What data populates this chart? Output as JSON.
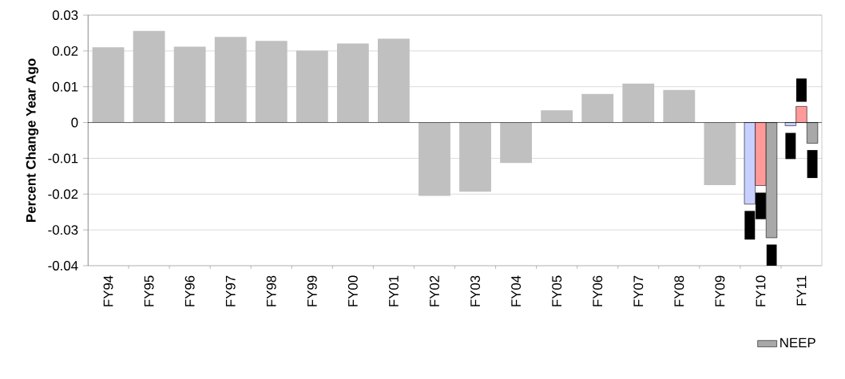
{
  "chart_data": {
    "type": "bar",
    "ylabel": "Percent Change Year Ago",
    "categories": [
      "FY94",
      "FY95",
      "FY96",
      "FY97",
      "FY98",
      "FY99",
      "FY00",
      "FY01",
      "FY02",
      "FY03",
      "FY04",
      "FY05",
      "FY06",
      "FY07",
      "FY08",
      "FY09",
      "FY10",
      "FY11"
    ],
    "series": [
      {
        "color": "#c0c0c0",
        "values": [
          0.021,
          0.0256,
          0.0212,
          0.0239,
          0.0228,
          0.0201,
          0.0221,
          0.0234,
          -0.0205,
          -0.0193,
          -0.0113,
          0.0034,
          0.008,
          0.0109,
          0.0091,
          -0.0175,
          null,
          null
        ]
      },
      {
        "color": "#c8d0ff",
        "values": [
          null,
          null,
          null,
          null,
          null,
          null,
          null,
          null,
          null,
          null,
          null,
          null,
          null,
          null,
          null,
          null,
          -0.0228,
          -0.0009
        ],
        "errors": [
          null,
          null,
          null,
          null,
          null,
          null,
          null,
          null,
          null,
          null,
          null,
          null,
          null,
          null,
          null,
          null,
          [
            -0.0327,
            -0.0247
          ],
          [
            -0.0102,
            -0.0029
          ]
        ]
      },
      {
        "color": "#ff9a9a",
        "values": [
          null,
          null,
          null,
          null,
          null,
          null,
          null,
          null,
          null,
          null,
          null,
          null,
          null,
          null,
          null,
          null,
          -0.0176,
          0.0045
        ],
        "errors": [
          null,
          null,
          null,
          null,
          null,
          null,
          null,
          null,
          null,
          null,
          null,
          null,
          null,
          null,
          null,
          null,
          [
            -0.027,
            -0.0196
          ],
          [
            0.0058,
            0.0123
          ]
        ]
      },
      {
        "name": "NEEP",
        "color": "#a8a8a8",
        "values": [
          null,
          null,
          null,
          null,
          null,
          null,
          null,
          null,
          null,
          null,
          null,
          null,
          null,
          null,
          null,
          null,
          -0.0322,
          -0.0058
        ],
        "errors": [
          null,
          null,
          null,
          null,
          null,
          null,
          null,
          null,
          null,
          null,
          null,
          null,
          null,
          null,
          null,
          null,
          [
            -0.04,
            -0.0341
          ],
          [
            -0.0155,
            -0.0077
          ]
        ]
      }
    ],
    "ylim": [
      -0.04,
      0.03
    ],
    "yticks": [
      -0.04,
      -0.03,
      -0.02,
      -0.01,
      0,
      0.01,
      0.02,
      0.03
    ],
    "grid": "y",
    "legend": "bottom right"
  }
}
